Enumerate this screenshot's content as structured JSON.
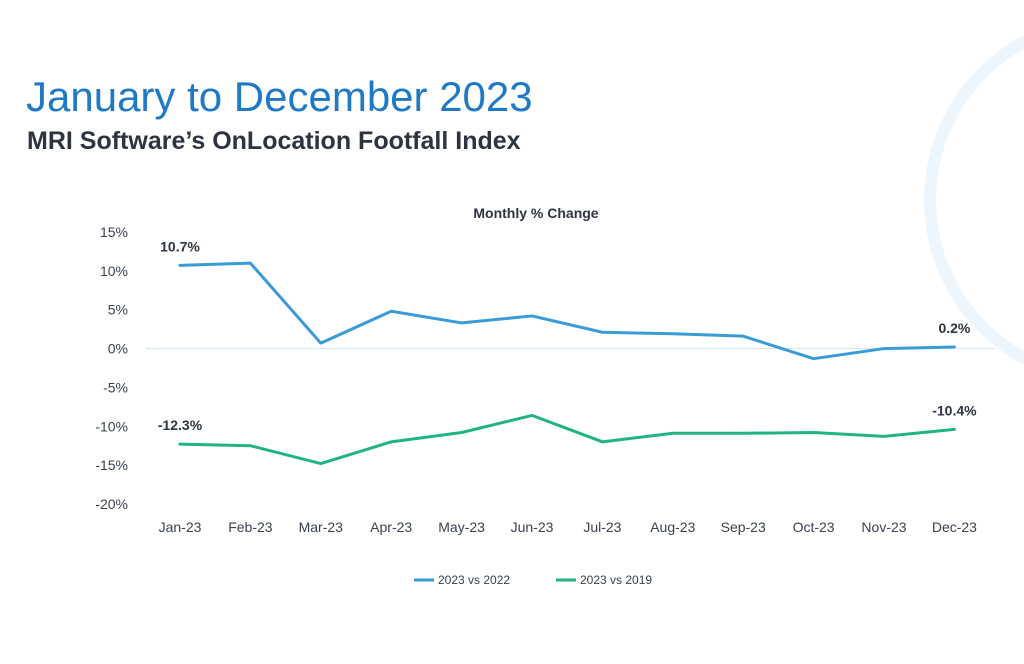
{
  "header": {
    "title": "January to December 2023",
    "subtitle": "MRI Software’s OnLocation Footfall Index"
  },
  "colors": {
    "title": "#1e7ac6",
    "subtitle": "#2d3440",
    "axis_text": "#3a4250",
    "series_2022": "#3a9bd9",
    "series_2019": "#1fb386",
    "zero_line": "#d9e8f5",
    "arc": "#eef6fd"
  },
  "chart_data": {
    "type": "line",
    "title": "Monthly % Change",
    "xlabel": "",
    "ylabel": "",
    "categories": [
      "Jan-23",
      "Feb-23",
      "Mar-23",
      "Apr-23",
      "May-23",
      "Jun-23",
      "Jul-23",
      "Aug-23",
      "Sep-23",
      "Oct-23",
      "Nov-23",
      "Dec-23"
    ],
    "ylim": [
      -20,
      15
    ],
    "yticks": [
      15,
      10,
      5,
      0,
      -5,
      -10,
      -15,
      -20
    ],
    "ytick_labels": [
      "15%",
      "10%",
      "5%",
      "0%",
      "-5%",
      "-10%",
      "-15%",
      "-20%"
    ],
    "grid": false,
    "legend": "bottom",
    "series": [
      {
        "name": "2023 vs 2022",
        "values": [
          10.7,
          11.0,
          0.7,
          4.8,
          3.3,
          4.2,
          2.1,
          1.9,
          1.6,
          -1.3,
          0.0,
          0.2
        ],
        "labels": {
          "0": "10.7%",
          "11": "0.2%"
        }
      },
      {
        "name": "2023 vs 2019",
        "values": [
          -12.3,
          -12.5,
          -14.8,
          -12.0,
          -10.8,
          -8.6,
          -12.0,
          -10.9,
          -10.9,
          -10.8,
          -11.3,
          -10.4
        ],
        "labels": {
          "0": "-12.3%",
          "11": "-10.4%"
        }
      }
    ]
  }
}
